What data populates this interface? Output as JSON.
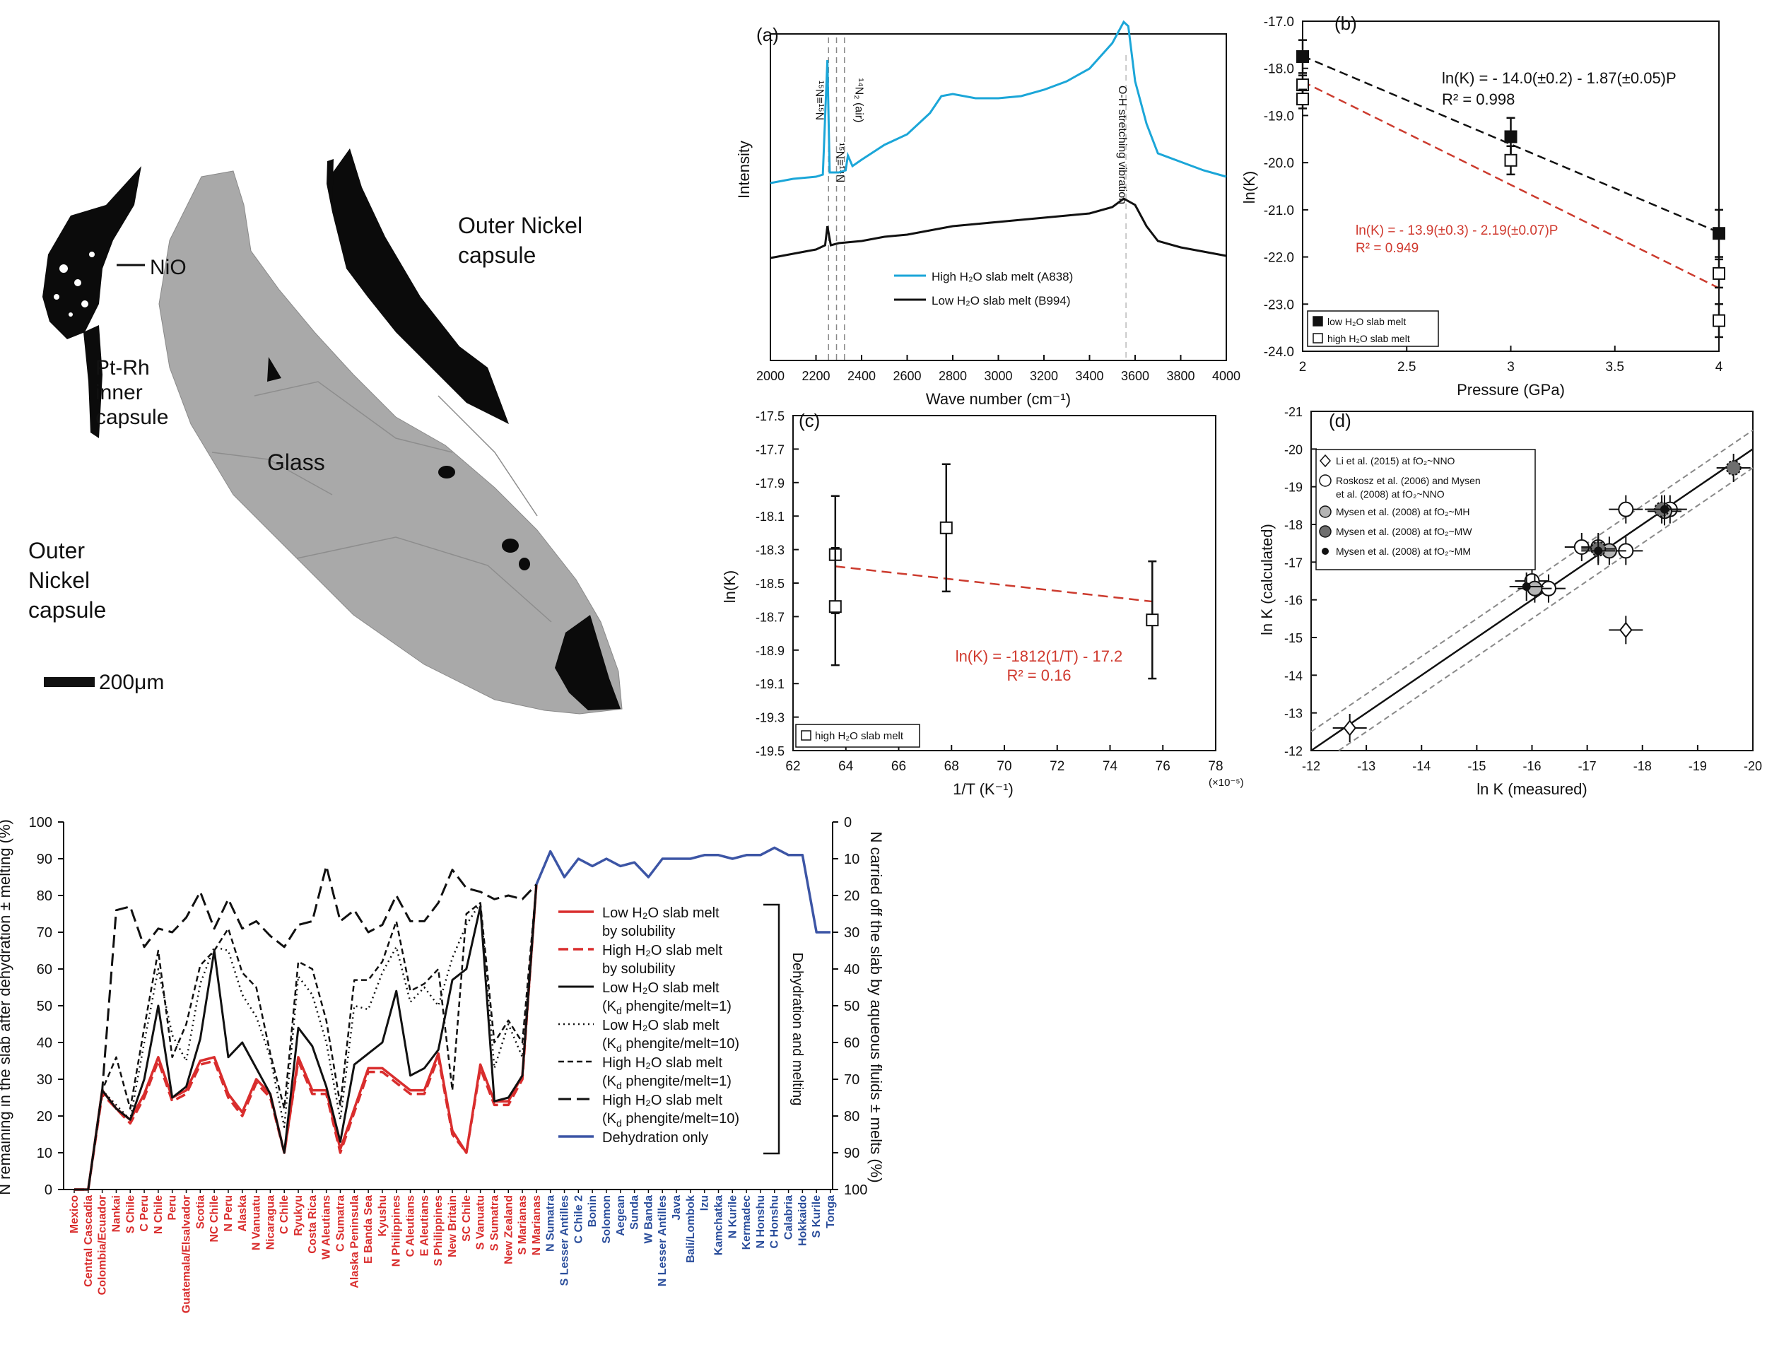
{
  "colors": {
    "black": "#111111",
    "cyan": "#1ba6d8",
    "red_fit": "#cc3b2e",
    "red_text": "#d03a2f",
    "blue_line": "#3c55a5",
    "blue_text": "#2a4d9b",
    "red_label": "#d92d2d",
    "grey": "#888888",
    "glass": "#a9a9a9"
  },
  "micrograph": {
    "labels": {
      "nio": "NiO",
      "pt_rh": "Pt-Rh\ninner\ncapsule",
      "outer_top": "Outer Nickel\ncapsule",
      "glass": "Glass",
      "outer_left": "Outer\nNickel\ncapsule",
      "scale": "200μm"
    }
  },
  "chart_data": [
    {
      "id": "a",
      "panel_label": "(a)",
      "type": "line",
      "xlabel": "Wave number (cm⁻¹)",
      "ylabel": "Intensity",
      "xlim": [
        2000,
        4000
      ],
      "xticks": [
        2000,
        2200,
        2400,
        2600,
        2800,
        3000,
        3200,
        3400,
        3600,
        3800,
        4000
      ],
      "series": [
        {
          "name": "High H₂O slab melt (A838)",
          "color": "#1ba6d8",
          "x": [
            2000,
            2100,
            2200,
            2230,
            2250,
            2260,
            2300,
            2330,
            2340,
            2360,
            2400,
            2500,
            2600,
            2700,
            2750,
            2800,
            2900,
            3000,
            3100,
            3200,
            3300,
            3400,
            3500,
            3550,
            3570,
            3600,
            3650,
            3700,
            3800,
            3900,
            4000
          ],
          "y": [
            0.22,
            0.24,
            0.25,
            0.26,
            0.8,
            0.27,
            0.27,
            0.28,
            0.35,
            0.3,
            0.33,
            0.4,
            0.45,
            0.55,
            0.63,
            0.64,
            0.62,
            0.62,
            0.63,
            0.66,
            0.7,
            0.76,
            0.88,
            0.98,
            0.96,
            0.7,
            0.5,
            0.36,
            0.32,
            0.28,
            0.25
          ]
        },
        {
          "name": "Low H₂O slab melt (B994)",
          "color": "#111111",
          "x": [
            2000,
            2100,
            2200,
            2240,
            2250,
            2265,
            2300,
            2400,
            2500,
            2600,
            2700,
            2800,
            2900,
            3000,
            3100,
            3200,
            3300,
            3400,
            3500,
            3550,
            3600,
            3650,
            3700,
            3800,
            3900,
            4000
          ],
          "y": [
            0.0,
            0.02,
            0.04,
            0.06,
            0.15,
            0.06,
            0.07,
            0.08,
            0.1,
            0.11,
            0.13,
            0.15,
            0.16,
            0.17,
            0.18,
            0.19,
            0.2,
            0.21,
            0.24,
            0.28,
            0.25,
            0.15,
            0.08,
            0.05,
            0.03,
            0.01
          ]
        }
      ],
      "annotations": [
        {
          "text": "¹⁵N≡¹⁵N",
          "x": 2250
        },
        {
          "text": "¹⁵N≡¹⁴N",
          "x": 2290
        },
        {
          "text": "¹⁴N₂ (air)",
          "x": 2330
        },
        {
          "text": "O-H stretching vibration",
          "x": 3560
        }
      ]
    },
    {
      "id": "b",
      "panel_label": "(b)",
      "type": "scatter",
      "xlabel": "Pressure (GPa)",
      "ylabel": "ln(K)",
      "xlim": [
        2,
        4
      ],
      "ylim": [
        -24.0,
        -17.0
      ],
      "xticks": [
        "2",
        "2.5",
        "3",
        "3.5",
        "4"
      ],
      "yticks": [
        "-17.0",
        "-18.0",
        "-19.0",
        "-20.0",
        "-21.0",
        "-22.0",
        "-23.0",
        "-24.0"
      ],
      "series": [
        {
          "name": "low H₂O slab melt",
          "marker": "filled-square",
          "points": [
            {
              "x": 2,
              "y": -17.75,
              "err": 0.35
            },
            {
              "x": 3,
              "y": -19.45,
              "err": 0.4
            },
            {
              "x": 4,
              "y": -21.5,
              "err": 0.5
            }
          ]
        },
        {
          "name": "high H₂O slab melt",
          "marker": "open-square",
          "points": [
            {
              "x": 2,
              "y": -18.35,
              "err": 0.2
            },
            {
              "x": 2,
              "y": -18.65,
              "err": 0.2
            },
            {
              "x": 3,
              "y": -19.95,
              "err": 0.3
            },
            {
              "x": 4,
              "y": -22.35,
              "err": 0.3
            },
            {
              "x": 4,
              "y": -23.35,
              "err": 0.35
            }
          ]
        }
      ],
      "fits": [
        {
          "x": [
            2,
            4
          ],
          "y": [
            -17.74,
            -21.48
          ],
          "color": "#111111"
        },
        {
          "x": [
            2,
            4
          ],
          "y": [
            -18.28,
            -22.66
          ],
          "color": "#cc3b2e"
        }
      ],
      "eq_black": "ln(K) = - 14.0(±0.2) - 1.87(±0.05)P",
      "r2_black": "R² = 0.998",
      "eq_red": "ln(K) = - 13.9(±0.3) - 2.19(±0.07)P",
      "r2_red": "R² = 0.949"
    },
    {
      "id": "c",
      "panel_label": "(c)",
      "type": "scatter",
      "xlabel": "1/T (K⁻¹)",
      "xunit": "(×10⁻⁵)",
      "ylabel": "ln(K)",
      "xlim": [
        62,
        78
      ],
      "ylim": [
        -19.5,
        -17.5
      ],
      "xticks": [
        "62",
        "64",
        "66",
        "68",
        "70",
        "72",
        "74",
        "76",
        "78"
      ],
      "yticks": [
        "-17.5",
        "-17.7",
        "-17.9",
        "-18.1",
        "-18.3",
        "-18.5",
        "-18.7",
        "-18.9",
        "-19.1",
        "-19.3",
        "-19.5"
      ],
      "series": [
        {
          "name": "high H₂O slab melt",
          "marker": "open-square",
          "points": [
            {
              "x": 63.6,
              "y": -18.33,
              "err": 0.35
            },
            {
              "x": 63.6,
              "y": -18.64,
              "err": 0.35
            },
            {
              "x": 67.8,
              "y": -18.17,
              "err": 0.38
            },
            {
              "x": 75.6,
              "y": -18.72,
              "err": 0.35
            }
          ]
        }
      ],
      "fits": [
        {
          "x": [
            63.6,
            75.6
          ],
          "y": [
            -18.4,
            -18.61
          ],
          "color": "#cc3b2e"
        }
      ],
      "eq": "ln(K) = -1812(1/T) - 17.2",
      "r2": "R² = 0.16"
    },
    {
      "id": "d",
      "panel_label": "(d)",
      "type": "scatter",
      "xlabel": "ln K (measured)",
      "ylabel": "ln K (calculated)",
      "xlim": [
        -12,
        -20
      ],
      "ylim": [
        -12,
        -21
      ],
      "xticks": [
        "-12",
        "-13",
        "-14",
        "-15",
        "-16",
        "-17",
        "-18",
        "-19",
        "-20"
      ],
      "yticks": [
        "-21",
        "-20",
        "-19",
        "-18",
        "-17",
        "-16",
        "-15",
        "-14",
        "-13",
        "-12"
      ],
      "series": [
        {
          "name": "Li et al. (2015) at fO₂~NNO",
          "marker": "diamond",
          "points": [
            {
              "x": -12.7,
              "y": -12.6
            },
            {
              "x": -17.7,
              "y": -15.2
            }
          ]
        },
        {
          "name": "Roskosz et al. (2006) and Mysen et al. (2008) at fO₂~NNO",
          "marker": "open-circle",
          "points": [
            {
              "x": -16.0,
              "y": -16.5
            },
            {
              "x": -16.3,
              "y": -16.3
            },
            {
              "x": -16.9,
              "y": -17.4
            },
            {
              "x": -17.7,
              "y": -18.4
            },
            {
              "x": -17.7,
              "y": -17.3
            },
            {
              "x": -18.5,
              "y": -18.4
            },
            {
              "x": -17.2,
              "y": -17.4
            }
          ]
        },
        {
          "name": "Mysen et al. (2008) at fO₂~MH",
          "marker": "grey-circle",
          "points": [
            {
              "x": -17.4,
              "y": -17.3
            },
            {
              "x": -16.05,
              "y": -16.3
            },
            {
              "x": -18.4,
              "y": -18.35
            }
          ]
        },
        {
          "name": "Mysen et al. (2008) at fO₂~MW",
          "marker": "hatched-circle",
          "points": [
            {
              "x": -17.2,
              "y": -17.35
            },
            {
              "x": -19.65,
              "y": -19.5
            },
            {
              "x": -18.35,
              "y": -18.4
            }
          ]
        },
        {
          "name": "Mysen et al. (2008) at fO₂~MM",
          "marker": "small-dot",
          "points": [
            {
              "x": -15.9,
              "y": -16.35
            },
            {
              "x": -18.4,
              "y": -18.4
            },
            {
              "x": -17.2,
              "y": -17.3
            }
          ]
        }
      ]
    },
    {
      "id": "e",
      "type": "line",
      "ylabel_left": "N remaining in the slab after dehydration ± melting (%)",
      "ylabel_right": "N carried off the slab by aqueous fluids ± melts (%)",
      "ylim": [
        0,
        100
      ],
      "yticks_left": [
        "0",
        "10",
        "20",
        "30",
        "40",
        "50",
        "60",
        "70",
        "80",
        "90",
        "100"
      ],
      "yticks_right": [
        "100",
        "90",
        "80",
        "70",
        "60",
        "50",
        "40",
        "30",
        "20",
        "10",
        "0"
      ],
      "bracket_label": "Dehydration and melting",
      "categories_red": [
        "Mexico",
        "Central Cascadia",
        "Colombia/Ecuador",
        "Nankai",
        "S Chile",
        "C Peru",
        "N Chile",
        "Peru",
        "Guatemala/Elsalvador",
        "Scotia",
        "NC Chile",
        "N Peru",
        "Alaska",
        "N Vanuatu",
        "Nicaragua",
        "C Chile",
        "Ryukyu",
        "Costa Rica",
        "W Aleutians",
        "C Sumatra",
        "Alaska Peninsula",
        "E Banda Sea",
        "Kyushu",
        "N Philippines",
        "C Aleutians",
        "E Aleutians",
        "S Philippines",
        "New Britain",
        "SC Chile",
        "S Vanuatu",
        "S Sumatra",
        "New Zealand",
        "S Marianas",
        "N Marianas"
      ],
      "categories_blue": [
        "N Sumatra",
        "S Lesser Antilles",
        "C Chile 2",
        "Bonin",
        "Solomon",
        "Aegean",
        "Sunda",
        "W Banda",
        "N Lesser Antilles",
        "Java",
        "Bali/Lombok",
        "Izu",
        "Kamchatka",
        "N Kurile",
        "Kermadec",
        "N Honshu",
        "C Honshu",
        "Calabria",
        "Hokkaido",
        "S Kurile",
        "Tonga"
      ],
      "series": [
        {
          "name": "Low H₂O slab melt\nby solubility",
          "style": "red-solid",
          "values": [
            0,
            0,
            27,
            22,
            19,
            26,
            36,
            25,
            27,
            35,
            36,
            26,
            21,
            30,
            26,
            10,
            36,
            27,
            27,
            11,
            22,
            33,
            33,
            30,
            27,
            27,
            37,
            16,
            10,
            34,
            24,
            24,
            31,
            83
          ]
        },
        {
          "name": "High H₂O slab melt\nby solubility",
          "style": "red-dash",
          "values": [
            0,
            0,
            26,
            22,
            18,
            25,
            35,
            24,
            26,
            34,
            35,
            25,
            20,
            29,
            25,
            10,
            35,
            26,
            26,
            10,
            21,
            32,
            32,
            29,
            26,
            26,
            36,
            15,
            10,
            33,
            23,
            23,
            30,
            83
          ]
        },
        {
          "name": "Low H₂O slab melt\n(K_d phengite/melt=1)",
          "style": "black-solid",
          "values": [
            0,
            0,
            27,
            22,
            19,
            30,
            50,
            25,
            28,
            41,
            65,
            36,
            40,
            33,
            26,
            10,
            44,
            39,
            28,
            13,
            34,
            37,
            40,
            54,
            31,
            33,
            38,
            57,
            60,
            77,
            24,
            25,
            31,
            83
          ]
        },
        {
          "name": "Low H₂O slab melt\n(K_d phengite/melt=10)",
          "style": "black-dot",
          "values": [
            0,
            0,
            27,
            23,
            19,
            40,
            60,
            42,
            35,
            56,
            66,
            65,
            53,
            47,
            36,
            17,
            58,
            53,
            40,
            19,
            50,
            49,
            59,
            66,
            51,
            55,
            50,
            63,
            72,
            78,
            33,
            45,
            36,
            83
          ]
        },
        {
          "name": "High H₂O slab melt\n(K_d phengite/melt=1)",
          "style": "black-dash",
          "values": [
            0,
            0,
            27,
            36,
            22,
            44,
            65,
            36,
            45,
            61,
            65,
            71,
            59,
            55,
            37,
            22,
            62,
            60,
            46,
            23,
            57,
            57,
            62,
            73,
            54,
            56,
            60,
            27,
            75,
            78,
            40,
            46,
            40,
            83
          ]
        },
        {
          "name": "High H₂O slab melt\n(K_d phengite/melt=10)",
          "style": "black-longdash",
          "values": [
            0,
            0,
            27,
            76,
            77,
            66,
            71,
            70,
            74,
            81,
            71,
            79,
            71,
            73,
            69,
            66,
            72,
            73,
            88,
            73,
            76,
            70,
            72,
            80,
            73,
            73,
            78,
            87,
            82,
            81,
            79,
            80,
            79,
            83
          ]
        },
        {
          "name": "Dehydration only",
          "style": "blue-solid",
          "values_blue": [
            92,
            85,
            90,
            88,
            90,
            88,
            89,
            85,
            90,
            90,
            90,
            91,
            91,
            90,
            91,
            91,
            93,
            91,
            91,
            70,
            70
          ]
        }
      ]
    }
  ]
}
